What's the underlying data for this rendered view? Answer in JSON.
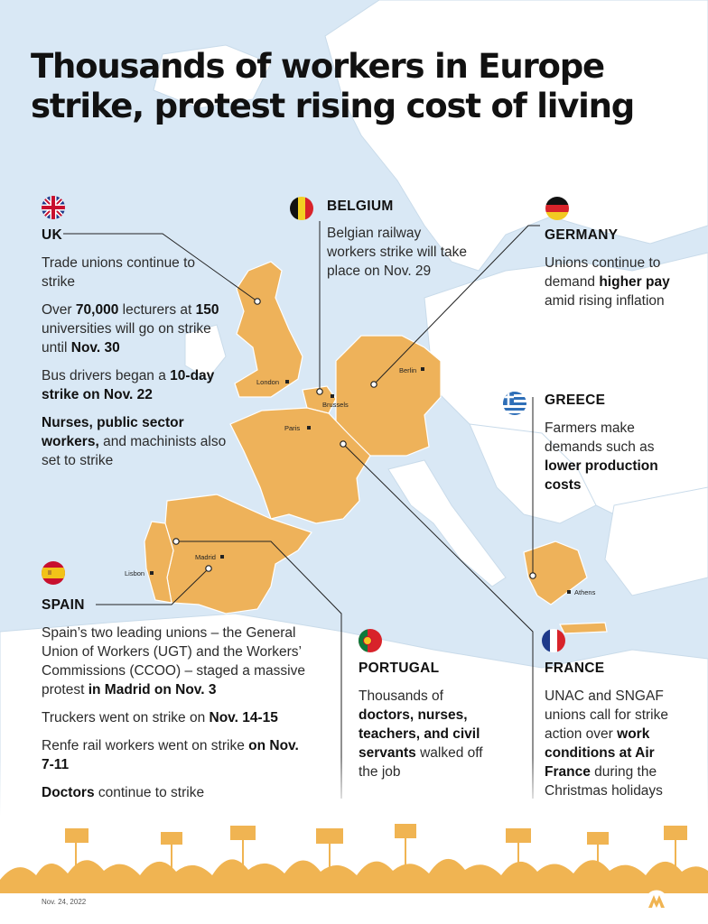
{
  "title": "Thousands of workers in Europe strike, protest rising cost of living",
  "cities": {
    "london": "London",
    "paris": "Paris",
    "brussels": "Brussels",
    "berlin": "Berlin",
    "madrid": "Madrid",
    "lisbon": "Lisbon",
    "athens": "Athens"
  },
  "uk": {
    "heading": "UK",
    "p1": "Trade unions continue to strike",
    "p2": {
      "a": "Over ",
      "b": "70,000",
      "c": " lecturers at ",
      "d": "150",
      "e": " universities will go on strike until ",
      "f": "Nov. 30"
    },
    "p3": {
      "a": "Bus drivers began a ",
      "b": "10-day strike on Nov. 22"
    },
    "p4": {
      "a": "Nurses, public sector workers,",
      "b": " and machinists also set to strike"
    }
  },
  "belgium": {
    "heading": "BELGIUM",
    "p1": "Belgian railway workers strike will take place on Nov. 29"
  },
  "germany": {
    "heading": "GERMANY",
    "p1": {
      "a": "Unions continue to demand ",
      "b": "higher pay",
      "c": " amid rising inflation"
    }
  },
  "greece": {
    "heading": "GREECE",
    "p1": {
      "a": "Farmers make demands such as ",
      "b": "lower production costs"
    }
  },
  "spain": {
    "heading": "SPAIN",
    "p1": {
      "a": "Spain’s two leading unions – the General Union of Workers (UGT) and the Workers’ Commissions (CCOO) – staged a massive protest ",
      "b": "in Madrid on Nov. 3"
    },
    "p2": {
      "a": "Truckers went on strike on ",
      "b": "Nov. 14-15"
    },
    "p3": {
      "a": "Renfe rail workers went on strike ",
      "b": "on Nov. 7-11"
    },
    "p4": {
      "a": "Doctors",
      "b": " continue to strike"
    }
  },
  "portugal": {
    "heading": "PORTUGAL",
    "p1": {
      "a": "Thousands of ",
      "b": "doctors, nurses, teachers, and civil servants",
      "c": " walked off the job"
    }
  },
  "france": {
    "heading": "FRANCE",
    "p1": {
      "a": "UNAC and SNGAF unions call for strike action over ",
      "b": "work conditions at Air France",
      "c": " during the Christmas holidays"
    }
  },
  "footer": {
    "date": "Nov. 24, 2022",
    "logo_icon": "aa-logo-icon"
  },
  "colors": {
    "land": "#ffffff",
    "sea": "#d9e8f5",
    "highlight": "#eeb25a",
    "title": "#111111",
    "crowd": "#f0b452"
  }
}
